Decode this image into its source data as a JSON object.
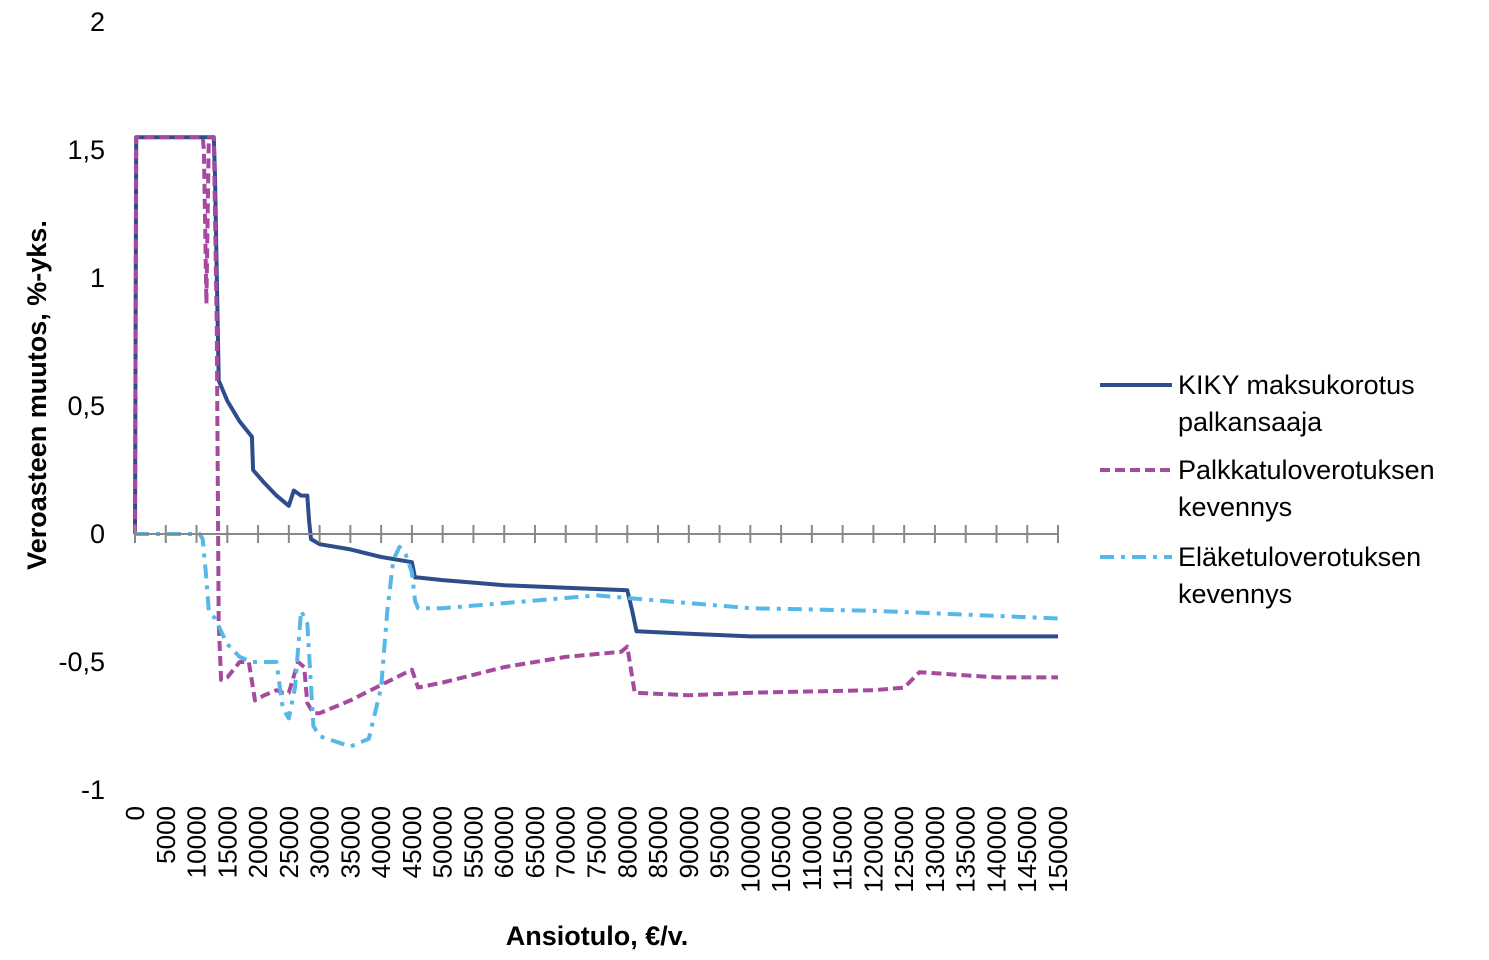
{
  "chart_data": {
    "type": "line",
    "title": "",
    "xlabel": "Ansiotulo, €/v.",
    "ylabel": "Veroasteen muutos, %-yks.",
    "ylim": [
      -1,
      2
    ],
    "xlim": [
      0,
      150000
    ],
    "y_ticks": [
      "2",
      "1,5",
      "1",
      "0,5",
      "0",
      "-0,5",
      "-1"
    ],
    "y_tick_values": [
      2,
      1.5,
      1,
      0.5,
      0,
      -0.5,
      -1
    ],
    "x_ticks": [
      "0",
      "5000",
      "10000",
      "15000",
      "20000",
      "25000",
      "30000",
      "35000",
      "40000",
      "45000",
      "50000",
      "55000",
      "60000",
      "65000",
      "70000",
      "75000",
      "80000",
      "85000",
      "90000",
      "95000",
      "100000",
      "105000",
      "110000",
      "115000",
      "120000",
      "125000",
      "130000",
      "135000",
      "140000",
      "145000",
      "150000"
    ],
    "grid": false,
    "legend_position": "right",
    "series": [
      {
        "name": "KIKY maksukorotus palkansaaja",
        "color": "#2E4D8C",
        "style": "solid",
        "x": [
          0,
          200,
          12800,
          13000,
          13600,
          15000,
          17000,
          19000,
          19200,
          21000,
          23000,
          25000,
          25800,
          27000,
          28000,
          28300,
          28600,
          30000,
          35000,
          40000,
          45000,
          45500,
          46000,
          50000,
          55000,
          60000,
          70000,
          80000,
          80800,
          81500,
          90000,
          100000,
          120000,
          140000,
          150000
        ],
        "values": [
          0,
          1.55,
          1.55,
          1.4,
          0.6,
          0.52,
          0.44,
          0.38,
          0.25,
          0.2,
          0.15,
          0.11,
          0.17,
          0.15,
          0.15,
          0.05,
          -0.02,
          -0.04,
          -0.06,
          -0.09,
          -0.11,
          -0.17,
          -0.17,
          -0.18,
          -0.19,
          -0.2,
          -0.21,
          -0.22,
          -0.3,
          -0.38,
          -0.39,
          -0.4,
          -0.4,
          -0.4,
          -0.4
        ]
      },
      {
        "name": "Palkkatuloverotuksen kevennys",
        "color": "#A54A9E",
        "style": "dashed",
        "x": [
          0,
          200,
          11000,
          11200,
          11600,
          12000,
          12800,
          13300,
          13600,
          14000,
          15000,
          17000,
          18500,
          19500,
          21000,
          23000,
          24000,
          25000,
          26500,
          27500,
          28000,
          29000,
          30000,
          35000,
          40000,
          45000,
          46000,
          50000,
          60000,
          70000,
          79000,
          80000,
          81200,
          90000,
          100000,
          120000,
          125000,
          127500,
          140000,
          150000
        ],
        "values": [
          0,
          1.55,
          1.55,
          1.5,
          0.9,
          1.55,
          1.55,
          0.8,
          -0.35,
          -0.57,
          -0.56,
          -0.5,
          -0.5,
          -0.65,
          -0.63,
          -0.61,
          -0.62,
          -0.62,
          -0.5,
          -0.52,
          -0.66,
          -0.7,
          -0.7,
          -0.65,
          -0.59,
          -0.53,
          -0.6,
          -0.58,
          -0.52,
          -0.48,
          -0.46,
          -0.44,
          -0.62,
          -0.63,
          -0.62,
          -0.61,
          -0.6,
          -0.54,
          -0.56,
          -0.56
        ]
      },
      {
        "name": "Eläketuloverotuksen kevennys",
        "color": "#55B8E6",
        "style": "dashdot",
        "x": [
          0,
          10500,
          11000,
          11500,
          12000,
          13000,
          14000,
          15000,
          17000,
          19000,
          21000,
          23000,
          24000,
          25000,
          26000,
          27000,
          28000,
          29000,
          30000,
          35000,
          38000,
          40000,
          41000,
          42000,
          43000,
          44000,
          45000,
          45500,
          46000,
          47000,
          50000,
          60000,
          70000,
          75000,
          80000,
          90000,
          100000,
          120000,
          140000,
          150000
        ],
        "values": [
          0,
          0,
          -0.02,
          -0.15,
          -0.3,
          -0.33,
          -0.38,
          -0.43,
          -0.48,
          -0.5,
          -0.5,
          -0.5,
          -0.68,
          -0.72,
          -0.6,
          -0.3,
          -0.35,
          -0.75,
          -0.79,
          -0.83,
          -0.8,
          -0.6,
          -0.3,
          -0.1,
          -0.05,
          -0.08,
          -0.15,
          -0.26,
          -0.29,
          -0.29,
          -0.29,
          -0.27,
          -0.25,
          -0.24,
          -0.25,
          -0.27,
          -0.29,
          -0.3,
          -0.32,
          -0.33
        ]
      }
    ]
  }
}
